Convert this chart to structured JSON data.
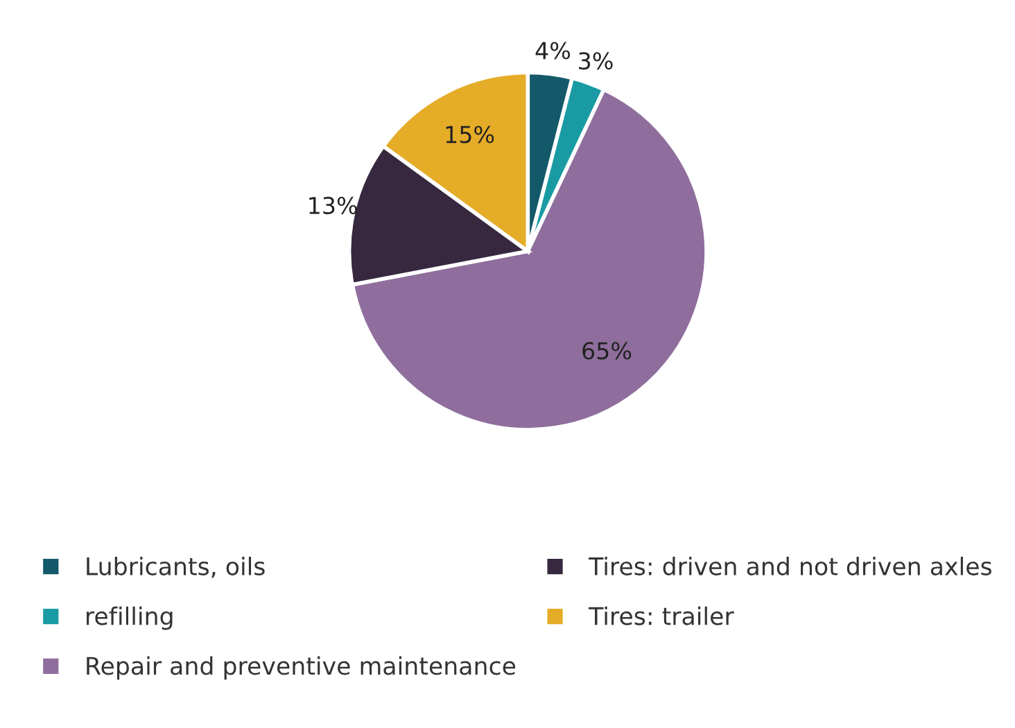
{
  "chart_data": {
    "type": "pie",
    "categories": [
      "Lubricants, oils",
      "refilling",
      "Repair and preventive maintenance",
      "Tires: driven and not driven axles",
      "Tires: trailer"
    ],
    "values": [
      4,
      3,
      65,
      13,
      15
    ],
    "colors": [
      "#14596a",
      "#1a9ba3",
      "#8f6e9d",
      "#372840",
      "#e5ac28"
    ],
    "value_labels": [
      "4%",
      "3%",
      "65%",
      "13%",
      "15%"
    ],
    "legend": "bottom"
  }
}
